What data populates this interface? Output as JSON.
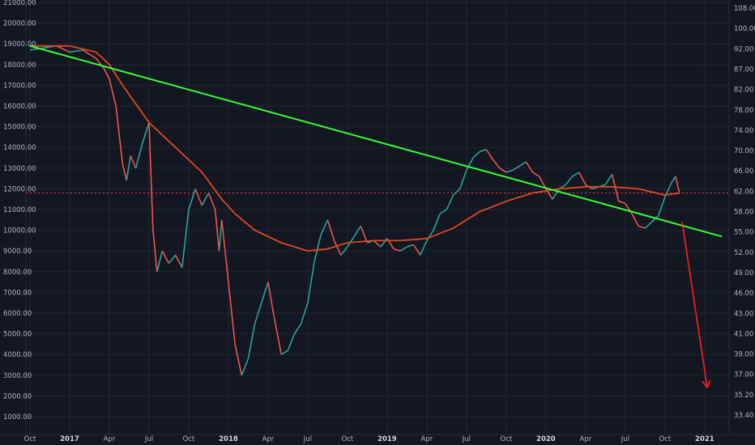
{
  "chart_data": {
    "type": "line",
    "left_axis": {
      "min": 0,
      "max": 21000,
      "ticks": [
        "1000.00",
        "2000.00",
        "3000.00",
        "4000.00",
        "5000.00",
        "6000.00",
        "7000.00",
        "8000.00",
        "9000.00",
        "10000.00",
        "11000.00",
        "12000.00",
        "13000.00",
        "14000.00",
        "15000.00",
        "16000.00",
        "17000.00",
        "18000.00",
        "19000.00",
        "20000.00",
        "21000.00"
      ]
    },
    "right_axis": {
      "ticks": [
        "108.00",
        "100.00",
        "92.00",
        "87.00",
        "82.00",
        "78.00",
        "74.00",
        "70.00",
        "66.00",
        "62.00",
        "58.00",
        "55.00",
        "52.00",
        "49.00",
        "46.00",
        "43.00",
        "41.00",
        "39.00",
        "37.00",
        "35.20",
        "33.40"
      ]
    },
    "x_axis": {
      "labels": [
        {
          "t": "Oct",
          "m": 0
        },
        {
          "t": "2017",
          "m": 3,
          "bold": true
        },
        {
          "t": "Apr",
          "m": 6
        },
        {
          "t": "Jul",
          "m": 9
        },
        {
          "t": "Oct",
          "m": 12
        },
        {
          "t": "2018",
          "m": 15,
          "bold": true
        },
        {
          "t": "Apr",
          "m": 18
        },
        {
          "t": "Jul",
          "m": 21
        },
        {
          "t": "Oct",
          "m": 24
        },
        {
          "t": "2019",
          "m": 27,
          "bold": true
        },
        {
          "t": "Apr",
          "m": 30
        },
        {
          "t": "Jul",
          "m": 33
        },
        {
          "t": "Oct",
          "m": 36
        },
        {
          "t": "2020",
          "m": 39,
          "bold": true
        },
        {
          "t": "Apr",
          "m": 42
        },
        {
          "t": "Jul",
          "m": 45
        },
        {
          "t": "Oct",
          "m": 48
        },
        {
          "t": "2021",
          "m": 51,
          "bold": true
        }
      ]
    },
    "price_path": [
      [
        0,
        18700
      ],
      [
        1,
        18800
      ],
      [
        2,
        18900
      ],
      [
        3,
        18600
      ],
      [
        4,
        18700
      ],
      [
        5,
        18300
      ],
      [
        5.6,
        17800
      ],
      [
        6,
        17300
      ],
      [
        6.5,
        16000
      ],
      [
        7,
        13200
      ],
      [
        7.3,
        12400
      ],
      [
        7.6,
        13600
      ],
      [
        8,
        13000
      ],
      [
        8.5,
        14200
      ],
      [
        9,
        15200
      ],
      [
        9.3,
        10000
      ],
      [
        9.6,
        8000
      ],
      [
        10,
        9000
      ],
      [
        10.5,
        8400
      ],
      [
        11,
        8800
      ],
      [
        11.5,
        8200
      ],
      [
        12,
        11000
      ],
      [
        12.5,
        12000
      ],
      [
        13,
        11200
      ],
      [
        13.5,
        11800
      ],
      [
        14,
        11000
      ],
      [
        14.3,
        9000
      ],
      [
        14.5,
        10500
      ],
      [
        15,
        7500
      ],
      [
        15.5,
        4500
      ],
      [
        16,
        3000
      ],
      [
        16.5,
        3800
      ],
      [
        17,
        5500
      ],
      [
        17.5,
        6500
      ],
      [
        18,
        7500
      ],
      [
        18.4,
        6000
      ],
      [
        19,
        4000
      ],
      [
        19.5,
        4200
      ],
      [
        20,
        5000
      ],
      [
        20.5,
        5500
      ],
      [
        21,
        6500
      ],
      [
        21.5,
        8500
      ],
      [
        22,
        9800
      ],
      [
        22.5,
        10500
      ],
      [
        23,
        9500
      ],
      [
        23.5,
        8800
      ],
      [
        24,
        9200
      ],
      [
        24.5,
        9700
      ],
      [
        25,
        10200
      ],
      [
        25.5,
        9400
      ],
      [
        26,
        9500
      ],
      [
        26.5,
        9200
      ],
      [
        27,
        9600
      ],
      [
        27.5,
        9100
      ],
      [
        28,
        9000
      ],
      [
        28.5,
        9200
      ],
      [
        29,
        9300
      ],
      [
        29.5,
        8800
      ],
      [
        30,
        9500
      ],
      [
        30.5,
        10000
      ],
      [
        31,
        10800
      ],
      [
        31.5,
        11000
      ],
      [
        32,
        11700
      ],
      [
        32.5,
        12000
      ],
      [
        33,
        12900
      ],
      [
        33.5,
        13500
      ],
      [
        34,
        13800
      ],
      [
        34.5,
        13900
      ],
      [
        35,
        13400
      ],
      [
        35.5,
        13000
      ],
      [
        36,
        12800
      ],
      [
        36.5,
        12900
      ],
      [
        37,
        13100
      ],
      [
        37.5,
        13300
      ],
      [
        38,
        12800
      ],
      [
        38.5,
        12600
      ],
      [
        39,
        12000
      ],
      [
        39.5,
        11500
      ],
      [
        40,
        12000
      ],
      [
        40.5,
        12200
      ],
      [
        41,
        12600
      ],
      [
        41.5,
        12800
      ],
      [
        42,
        12200
      ],
      [
        42.5,
        12000
      ],
      [
        43,
        12100
      ],
      [
        43.5,
        12200
      ],
      [
        44,
        12700
      ],
      [
        44.5,
        11400
      ],
      [
        45,
        11300
      ],
      [
        45.5,
        10800
      ],
      [
        46,
        10200
      ],
      [
        46.5,
        10100
      ],
      [
        47,
        10400
      ],
      [
        47.5,
        10700
      ],
      [
        48,
        11600
      ],
      [
        48.5,
        12300
      ],
      [
        48.8,
        12600
      ],
      [
        49.1,
        11800
      ]
    ],
    "ma_path": [
      [
        0,
        18900
      ],
      [
        3,
        18900
      ],
      [
        5,
        18600
      ],
      [
        6,
        18000
      ],
      [
        7,
        17000
      ],
      [
        9,
        15200
      ],
      [
        11,
        14000
      ],
      [
        13,
        12800
      ],
      [
        14.5,
        11500
      ],
      [
        15.5,
        10800
      ],
      [
        17,
        10000
      ],
      [
        19,
        9400
      ],
      [
        21,
        9000
      ],
      [
        22.5,
        9100
      ],
      [
        24,
        9400
      ],
      [
        26,
        9500
      ],
      [
        28,
        9500
      ],
      [
        30,
        9600
      ],
      [
        32,
        10100
      ],
      [
        34,
        10900
      ],
      [
        36,
        11400
      ],
      [
        38,
        11800
      ],
      [
        40,
        12000
      ],
      [
        42,
        12100
      ],
      [
        44,
        12100
      ],
      [
        46,
        12000
      ],
      [
        48,
        11700
      ],
      [
        49.1,
        11800
      ]
    ],
    "trendline": {
      "from": [
        0,
        18900
      ],
      "to": [
        52.3,
        9700
      ]
    },
    "level_line": 11800,
    "arrow": {
      "from": [
        49.3,
        10400
      ],
      "to": [
        51.2,
        2400
      ]
    },
    "colors": {
      "price": "#26a69a",
      "ma": "#e0481f",
      "trend": "#33ff33",
      "level": "#f23645",
      "arrow": "#ff1f1f"
    }
  }
}
